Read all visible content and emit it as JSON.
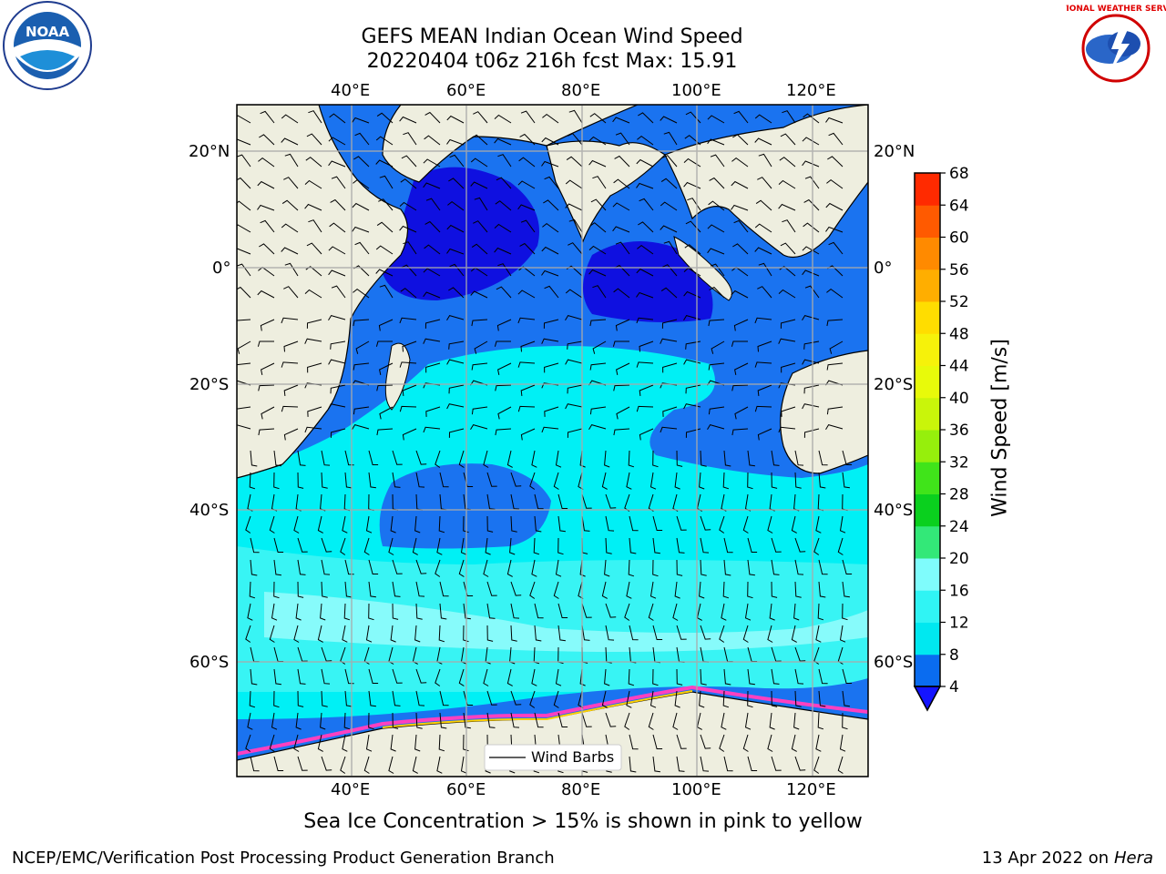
{
  "title_line1": "GEFS MEAN Indian Ocean Wind Speed",
  "title_line2": "20220404 t06z 216h fcst   Max: 15.91",
  "longitude_ticks": [
    "40°E",
    "60°E",
    "80°E",
    "100°E",
    "120°E"
  ],
  "latitude_ticks": [
    "20°N",
    "0°",
    "20°S",
    "40°S",
    "60°S"
  ],
  "legend_label": "Wind Barbs",
  "colorbar": {
    "label": "Wind Speed [m/s]",
    "ticks": [
      "4",
      "8",
      "12",
      "16",
      "20",
      "24",
      "28",
      "32",
      "36",
      "40",
      "44",
      "48",
      "52",
      "56",
      "60",
      "64",
      "68"
    ],
    "colors": [
      "#0a6cf0",
      "#00e8f0",
      "#30f4f4",
      "#7ffcfc",
      "#33e878",
      "#0ad01e",
      "#40e41a",
      "#96ef0c",
      "#c9f50a",
      "#e8fa0a",
      "#f6f20a",
      "#ffdd00",
      "#ffae00",
      "#ff8a00",
      "#ff5a00",
      "#ff2a00"
    ],
    "under_color": "#1414ff"
  },
  "caption": "Sea Ice Concentration > 15% is shown in pink to yellow",
  "credit": "NCEP/EMC/Verification Post Processing Product Generation Branch",
  "date_prefix": "13 Apr 2022 on ",
  "date_host": "Hera",
  "noaa_logo_text": "NOAA",
  "nws_logo_text": "NATIONAL WEATHER SERVICE",
  "colors": {
    "land": "#eeeedf",
    "wind_4_8": "#1a73f0",
    "wind_below_4": "#0f10e0",
    "wind_8_12": "#00f0f5",
    "wind_12_16": "#38f4f4",
    "wind_16_20": "#87fbfb",
    "sea_ice": "#ff40c0"
  },
  "map": {
    "projection": "equirectangular",
    "lon_range": [
      20,
      130
    ],
    "lat_range": [
      -75,
      28
    ],
    "gridlines": true,
    "lon_gridlines": [
      40,
      60,
      80,
      100,
      120
    ],
    "lat_gridlines": [
      20,
      0,
      -20,
      -40,
      -60
    ]
  },
  "chart_data": {
    "type": "heatmap",
    "variable": "Wind Speed [m/s]",
    "max_value": 15.91,
    "color_levels": [
      4,
      8,
      12,
      16,
      20,
      24,
      28,
      32,
      36,
      40,
      44,
      48,
      52,
      56,
      60,
      64,
      68
    ]
  }
}
